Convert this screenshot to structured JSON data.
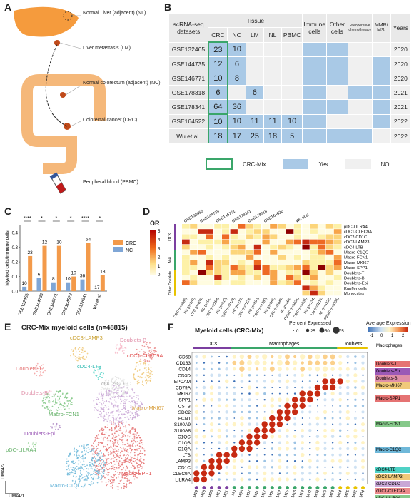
{
  "panel_labels": [
    "A",
    "B",
    "C",
    "D",
    "E",
    "F"
  ],
  "panelA": {
    "labels": [
      "Normal Liver (adjacent) (NL)",
      "Liver metastasis (LM)",
      "Normal colorectum (adjacent) (NC)",
      "Colorectal cancer (CRC)",
      "Peripheral blood (PBMC)"
    ]
  },
  "panelB": {
    "col_datasets": "scRNA-seq datasets",
    "col_tissue": "Tissue",
    "tissue_cols": [
      "CRC",
      "NC",
      "LM",
      "NL",
      "PBMC"
    ],
    "extra_cols": [
      "Immune cells",
      "Other cells",
      "Preoperative chemotherapy",
      "MMR/ MSI",
      "Years"
    ],
    "rows": [
      {
        "name": "GSE132465",
        "counts": [
          "23",
          "10",
          "",
          "",
          ""
        ],
        "flags": [
          "yes",
          "yes",
          "no",
          "no"
        ],
        "year": "2020"
      },
      {
        "name": "GSE144735",
        "counts": [
          "12",
          "6",
          "",
          "",
          ""
        ],
        "flags": [
          "yes",
          "yes",
          "no",
          "yes"
        ],
        "year": "2020"
      },
      {
        "name": "GSE146771",
        "counts": [
          "10",
          "8",
          "",
          "",
          ""
        ],
        "flags": [
          "yes",
          "yes",
          "no",
          "yes"
        ],
        "year": "2020"
      },
      {
        "name": "GSE178318",
        "counts": [
          "6",
          "",
          "6",
          "",
          ""
        ],
        "flags": [
          "yes",
          "no",
          "yes",
          "yes"
        ],
        "year": "2021"
      },
      {
        "name": "GSE178341",
        "counts": [
          "64",
          "36",
          "",
          "",
          ""
        ],
        "flags": [
          "yes",
          "yes",
          "no",
          "yes"
        ],
        "year": "2021"
      },
      {
        "name": "GSE164522",
        "counts": [
          "10",
          "10",
          "11",
          "11",
          "10"
        ],
        "flags": [
          "yes",
          "no",
          "no",
          "yes"
        ],
        "year": "2022"
      },
      {
        "name": "Wu et al.",
        "counts": [
          "18",
          "17",
          "25",
          "18",
          "5"
        ],
        "flags": [
          "yes",
          "yes",
          "yes",
          "no"
        ],
        "year": "2022"
      }
    ],
    "legend": [
      "CRC-Mix",
      "Yes",
      "NO"
    ],
    "colors": {
      "yes": "#a9c9e6",
      "no": "#f0f0f0",
      "crcmix": "#3aa66a"
    }
  },
  "panelC": {
    "chart_data": {
      "type": "bar",
      "ylabel": "Myeloid cells/Immune cells",
      "categories": [
        "GSE132465",
        "GSE144735",
        "GSE146771",
        "GSE164522",
        "GSE178341",
        "Wu et al."
      ],
      "series": [
        {
          "name": "CRC",
          "values": [
            0.24,
            0.31,
            0.31,
            0.1,
            0.33,
            0.11
          ],
          "counts": [
            "23",
            "12",
            "10",
            "10",
            "64",
            "18"
          ]
        },
        {
          "name": "NC",
          "values": [
            0.03,
            0.09,
            0.06,
            0.06,
            0.08,
            0.0
          ],
          "counts": [
            "10",
            "6",
            "8",
            "10",
            "36",
            "17"
          ]
        }
      ],
      "significance": [
        "****",
        "*",
        "*",
        "*",
        "****",
        "*"
      ],
      "yticks": [
        "0.0",
        "0.1",
        "0.2",
        "0.3",
        "0.4"
      ],
      "ylim": [
        0,
        0.45
      ],
      "colors": {
        "CRC": "#f39a4a",
        "NC": "#7fa6d6"
      }
    }
  },
  "panelD": {
    "legend_title": "OR",
    "legend_ticks": [
      "5",
      "4",
      "3",
      "2",
      "1",
      "0"
    ],
    "top_labels": [
      "GSE132465",
      "GSE144735",
      "GSE146771",
      "GSE178341",
      "GSE178318",
      "GSE164522",
      "Wu et al."
    ],
    "side_groups": [
      "DCs",
      "Mø",
      "Other Doublets"
    ],
    "row_labels": [
      "pDC-LILRA4",
      "cDC1-CLEC9A",
      "cDC2-CD1C",
      "cDC3-LAMP3",
      "cDC4-LTB",
      "Macro-C1QC",
      "Macro-FCN1",
      "Macro-MKI67",
      "Macro-SPP1",
      "Doublets-T",
      "Doublets-B",
      "Doublets-Epi",
      "Kupffer cells",
      "Monocytes"
    ],
    "bottom_labels": [
      "CRC (n=6086)",
      "NC (n=359)",
      "CRC (n=835)",
      "NC (n=91)",
      "CRC (n=2258)",
      "NC (n=610)",
      "CRC (n=3428)",
      "NC (n=119)",
      "CRC (n=7228)",
      "NC (n=480)",
      "CRC (n=1780)",
      "NC (n=961)",
      "CRC (n=1045)",
      "NL (n=563)",
      "PBMC (n=5631)",
      "CRC (n=5631)",
      "NC (n=134)",
      "LM (n=8216)",
      "NL (n=4332)",
      "PBMC (n=3751)"
    ]
  },
  "panelE": {
    "title": "CRC-Mix myeloid cells (n=48815)",
    "axis_x": "UMAP1",
    "axis_y": "UMAP2",
    "clusters": [
      "cDC3-LAMP3",
      "Doublets-B",
      "Doublets-T",
      "cDC4-LTB",
      "cDC1-CLEC9A",
      "Doublets-B",
      "cDC2-CD1C",
      "Macro-FCN1",
      "Macro-MKI67",
      "Doublets-Epi",
      "pDC-LILRA4",
      "Macro-SPP1",
      "Macro-C1QC"
    ]
  },
  "panelF": {
    "title": "Myeloid cells (CRC-Mix)",
    "size_legend_title": "Percent Expressed",
    "size_legend_values": [
      "0",
      "25",
      "50",
      "75"
    ],
    "color_legend_title": "Average Expression",
    "color_legend_ticks": [
      "-1",
      "0",
      "1",
      "2"
    ],
    "group_labels": [
      "DCs",
      "Macrophages",
      "Doublets"
    ],
    "genes": [
      "CD68",
      "CD163",
      "CD14",
      "CD3D",
      "EPCAM",
      "CD79A",
      "MKI67",
      "SPP1",
      "CSTB",
      "SDC2",
      "FCN1",
      "S100A9",
      "S100A8",
      "C1QC",
      "C1QB",
      "C1QA",
      "LTB",
      "LAMP3",
      "CD1C",
      "CLEC9A",
      "LILRA4"
    ],
    "clusters": [
      "M19",
      "M18",
      "M05",
      "M20",
      "M21",
      "M0",
      "M06",
      "M07",
      "M11",
      "M17",
      "M01",
      "M12",
      "M15",
      "M16",
      "M18",
      "M02",
      "M03",
      "M10",
      "M13",
      "M14",
      "M15",
      "M22",
      "M04"
    ],
    "right_labels": [
      "Macrophages",
      "Doublets-T",
      "Doublets-Epi",
      "Doublets-B",
      "Macro-MKI67",
      "Macro-SPP1",
      "Macro-FCN1",
      "Macro-C1QC",
      "cDC4-LTB",
      "cDC3-LAMP3",
      "cDC2-CD1C",
      "cDC1-CLEC9A",
      "pDC-LILRA4"
    ]
  }
}
